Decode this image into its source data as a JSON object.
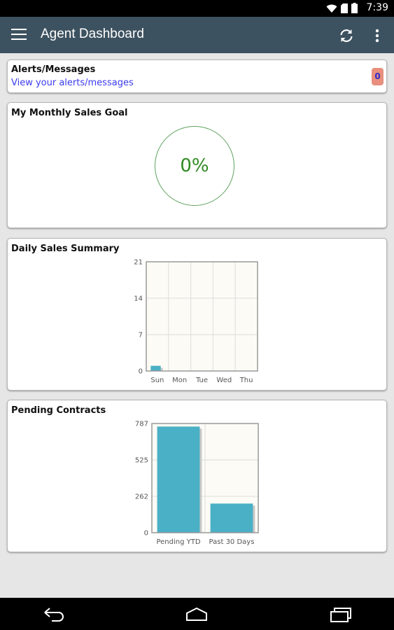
{
  "status_bar": {
    "time": "7:39",
    "icons": [
      "wifi-icon",
      "sim-icon",
      "battery-icon"
    ]
  },
  "app_bar": {
    "title": "Agent Dashboard",
    "actions": [
      "menu-icon",
      "refresh-icon",
      "more-vert-icon"
    ]
  },
  "alerts": {
    "title": "Alerts/Messages",
    "link": "View your alerts/messages",
    "count": "0"
  },
  "goal": {
    "title": "My Monthly Sales Goal",
    "percent_label": "0%",
    "progress": 0
  },
  "daily_sales": {
    "title": "Daily Sales Summary"
  },
  "pending_contracts": {
    "title": "Pending Contracts"
  },
  "colors": {
    "app_bar": "#3d5260",
    "bar": "#4ab0c5",
    "plot_bg": "#fcfbf5",
    "goal_text": "#2f8a22",
    "badge": "#e88f7e"
  },
  "chart_data": [
    {
      "type": "bar",
      "categories": [
        "Sun",
        "Mon",
        "Tue",
        "Wed",
        "Thu"
      ],
      "values": [
        1,
        0,
        0,
        0,
        0
      ],
      "yticks": [
        "0",
        "7",
        "14",
        "21"
      ],
      "ylim": [
        0,
        21
      ],
      "grid": true
    },
    {
      "type": "bar",
      "categories": [
        "Pending YTD",
        "Past 30 Days"
      ],
      "values": [
        765,
        210
      ],
      "yticks": [
        "0",
        "262",
        "525",
        "787"
      ],
      "ylim": [
        0,
        787
      ],
      "grid": true
    }
  ]
}
